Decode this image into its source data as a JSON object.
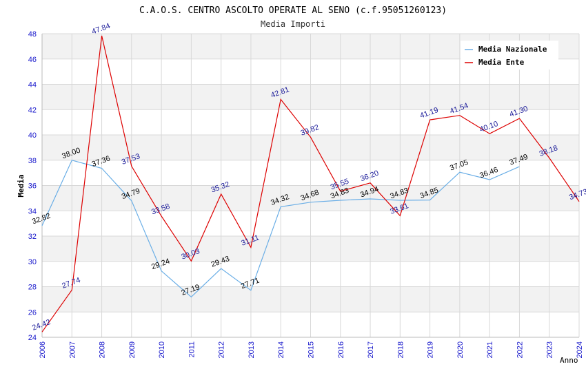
{
  "chart_data": {
    "type": "line",
    "title": "C.A.O.S. CENTRO ASCOLTO OPERATE AL SENO (c.f.95051260123)",
    "subtitle": "Media Importi",
    "xlabel": "Anno",
    "ylabel": "Media",
    "ylim": [
      24,
      48
    ],
    "yticks": [
      "24",
      "26",
      "28",
      "30",
      "32",
      "34",
      "36",
      "38",
      "40",
      "42",
      "44",
      "46",
      "48"
    ],
    "x": [
      "2006",
      "2007",
      "2008",
      "2009",
      "2010",
      "2011",
      "2012",
      "2013",
      "2014",
      "2015",
      "2016",
      "2017",
      "2018",
      "2019",
      "2020",
      "2021",
      "2022",
      "2023",
      "2024"
    ],
    "grid": true,
    "legend_position": "top-right",
    "series": [
      {
        "name": "Media Nazionale",
        "color": "#6aaee6",
        "label_color": "#000000",
        "values": [
          32.82,
          38.0,
          37.36,
          34.79,
          29.24,
          27.19,
          29.43,
          27.71,
          34.32,
          34.68,
          34.83,
          34.94,
          34.83,
          34.85,
          37.05,
          36.46,
          37.49,
          null,
          null
        ],
        "labels": [
          "32.82",
          "38.00",
          "37.36",
          "34.79",
          "29.24",
          "27.19",
          "29.43",
          "27.71",
          "34.32",
          "34.68",
          "34.83",
          "34.94",
          "34.83",
          "34.85",
          "37.05",
          "36.46",
          "37.49",
          null,
          null
        ]
      },
      {
        "name": "Media Ente",
        "color": "#dd0000",
        "label_color": "#1a1a99",
        "values": [
          24.42,
          27.74,
          47.84,
          37.53,
          33.58,
          30.03,
          35.32,
          31.11,
          42.81,
          39.82,
          35.55,
          36.2,
          33.61,
          41.19,
          41.54,
          40.1,
          41.3,
          38.18,
          34.73
        ],
        "labels": [
          "24.42",
          "27.74",
          "47.84",
          "37.53",
          "33.58",
          "30.03",
          "35.32",
          "31.11",
          "42.81",
          "39.82",
          "35.55",
          "36.20",
          "33.61",
          "41.19",
          "41.54",
          "40.10",
          "41.30",
          "38.18",
          "34.73"
        ]
      }
    ]
  },
  "colors": {
    "band": "#f2f2f2",
    "grid": "#d8d8d8",
    "tick_text": "#1a1acc",
    "title_text": "#000000",
    "subtitle_text": "#333333"
  }
}
